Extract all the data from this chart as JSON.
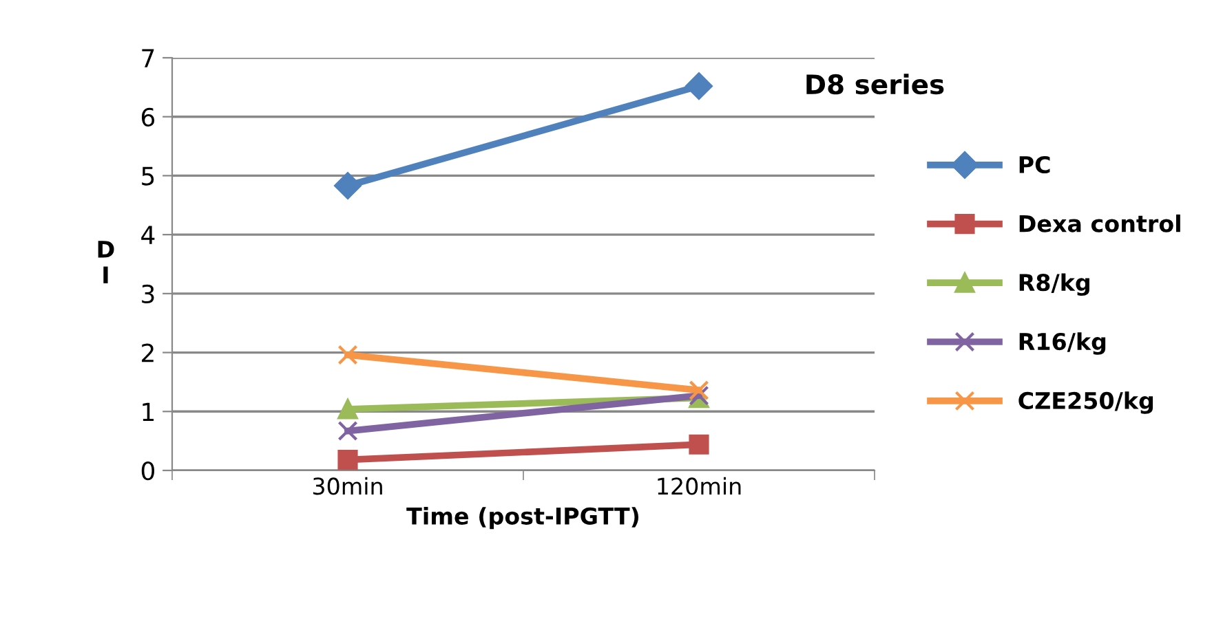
{
  "chart_data": {
    "type": "line",
    "title": "D8 series",
    "xlabel": "Time (post-IPGTT)",
    "ylabel": "D\nI",
    "categories": [
      "30min",
      "120min"
    ],
    "series": [
      {
        "name": "PC",
        "color": "#4f81bd",
        "marker": "diamond",
        "values": [
          4.83,
          6.52
        ]
      },
      {
        "name": "Dexa control",
        "color": "#c0504d",
        "marker": "square",
        "values": [
          0.18,
          0.44
        ]
      },
      {
        "name": "R8/kg",
        "color": "#9bbb59",
        "marker": "triangle",
        "values": [
          1.04,
          1.23
        ]
      },
      {
        "name": "R16/kg",
        "color": "#8064a2",
        "marker": "cross",
        "values": [
          0.67,
          1.27
        ]
      },
      {
        "name": "CZE250/kg",
        "color": "#f79646",
        "marker": "cross",
        "values": [
          1.96,
          1.36
        ]
      }
    ],
    "ylim": [
      0,
      7
    ],
    "yticks": [
      0,
      1,
      2,
      3,
      4,
      5,
      6,
      7
    ],
    "grid": "y",
    "legend": "right",
    "line_style": "solid"
  }
}
